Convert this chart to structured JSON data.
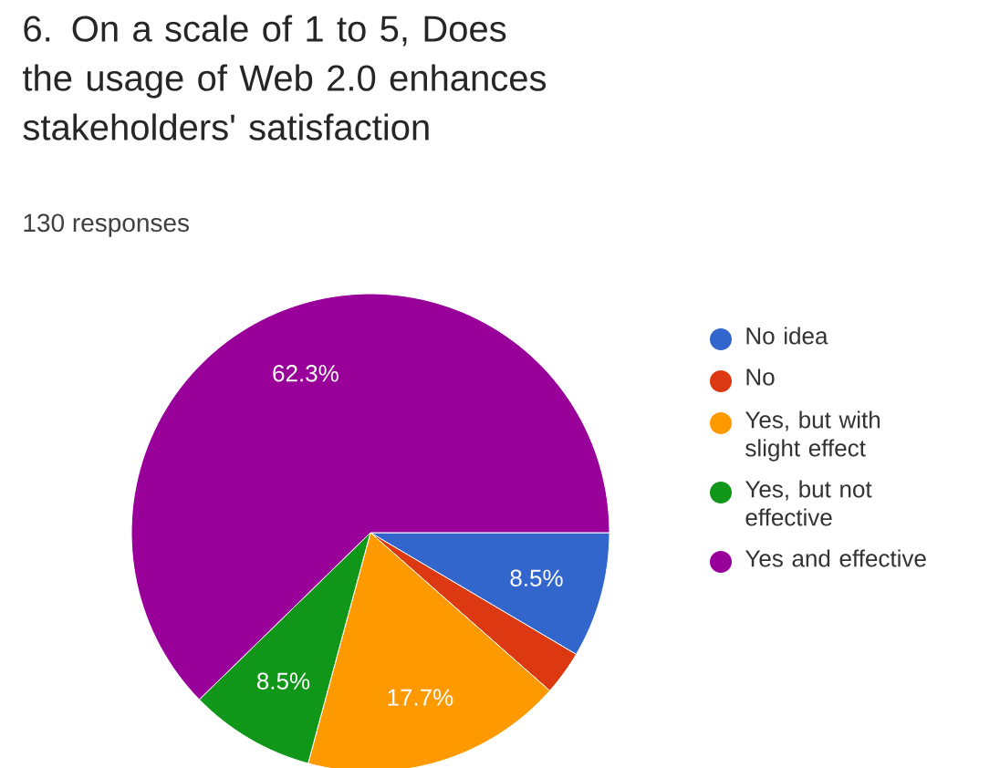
{
  "chart_data": {
    "type": "pie",
    "title": "6. On a scale of 1 to 5, Does the usage of Web 2.0 enhances stakeholders' satisfaction",
    "subtitle": "130 responses",
    "categories": [
      "No idea",
      "No",
      "Yes, but with slight effect",
      "Yes, but not effective",
      "Yes and effective"
    ],
    "values": [
      8.5,
      3.0,
      17.7,
      8.5,
      62.3
    ],
    "value_labels": [
      "8.5%",
      null,
      "17.7%",
      "8.5%",
      "62.3%"
    ],
    "colors": [
      "#3366cc",
      "#dc3912",
      "#ff9900",
      "#109618",
      "#990099"
    ],
    "legend": "right"
  }
}
